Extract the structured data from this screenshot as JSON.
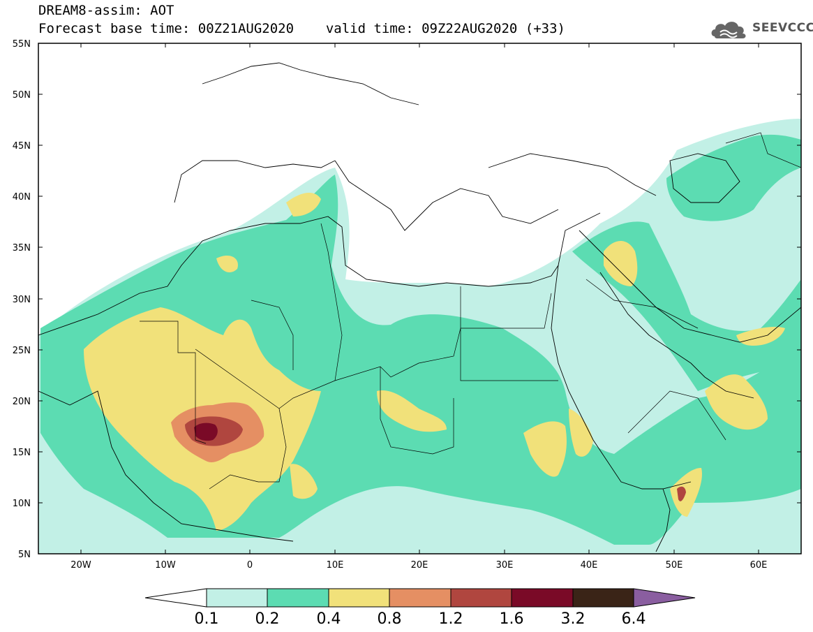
{
  "header": {
    "title_line1": "DREAM8-assim: AOT",
    "base_time_label": "Forecast base time: 00Z21AUG2020",
    "valid_time_label": "valid time: 09Z22AUG2020 (+33)"
  },
  "logo": {
    "text": "SEEVCCC",
    "icon": "cloud-logo-icon"
  },
  "map": {
    "lat_labels": [
      "55N",
      "50N",
      "45N",
      "40N",
      "35N",
      "30N",
      "25N",
      "20N",
      "15N",
      "10N",
      "5N"
    ],
    "lon_labels": [
      "20W",
      "10W",
      "0",
      "10E",
      "20E",
      "30E",
      "40E",
      "50E",
      "60E"
    ]
  },
  "colorbar": {
    "levels": [
      "0.1",
      "0.2",
      "0.4",
      "0.8",
      "1.2",
      "1.6",
      "3.2",
      "6.4"
    ],
    "colors": [
      "#ffffff",
      "#c2f0e6",
      "#5cdcb2",
      "#f1e17a",
      "#e58f63",
      "#b0463f",
      "#7a0a27",
      "#3a2417",
      "#8a5ea0"
    ]
  },
  "colors": {
    "aot_0_1": "#c2f0e6",
    "aot_0_2": "#5cdcb2",
    "aot_0_4": "#f1e17a",
    "aot_0_8": "#e58f63",
    "aot_1_2": "#b0463f",
    "aot_1_6": "#7a0a27"
  }
}
